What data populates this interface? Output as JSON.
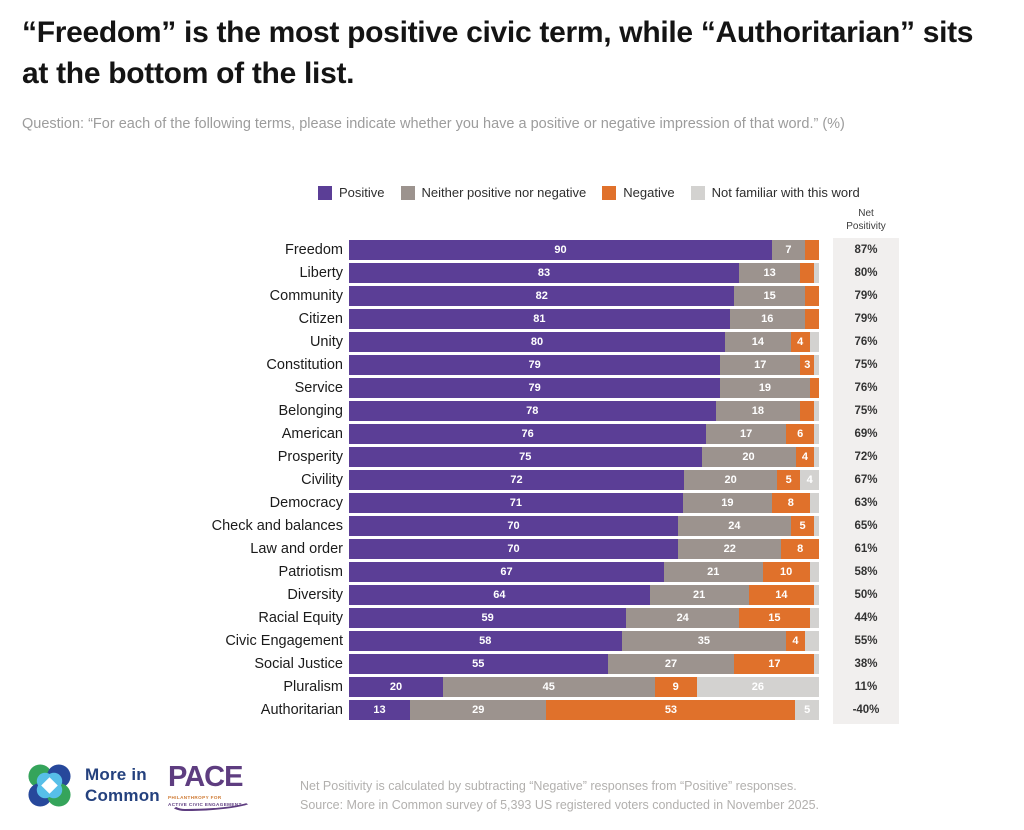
{
  "title": "“Freedom” is the most positive civic term, while “Authoritarian” sits at the bottom of the list.",
  "subtitle": "Question: “For each of the following terms, please indicate whether you have a positive or negative impression of that word.” (%)",
  "colors": {
    "positive": "#5b3e96",
    "neither": "#9c938e",
    "negative": "#e0712b",
    "not_familiar": "#d3d2d0",
    "net_column_bg": "#f1efee"
  },
  "legend": [
    {
      "label": "Positive",
      "color": "#5b3e96"
    },
    {
      "label": "Neither positive nor negative",
      "color": "#9c938e"
    },
    {
      "label": "Negative",
      "color": "#e0712b"
    },
    {
      "label": "Not familiar with this word",
      "color": "#d3d2d0"
    }
  ],
  "net_header": {
    "line1": "Net",
    "line2": "Positivity"
  },
  "chart_data": {
    "type": "bar",
    "orientation": "horizontal",
    "stacked": true,
    "x_range": [
      0,
      100
    ],
    "series_names": [
      "Positive",
      "Neither positive nor negative",
      "Negative",
      "Not familiar with this word"
    ],
    "net_column_title": "Net Positivity",
    "rows": [
      {
        "term": "Freedom",
        "values": [
          90,
          7,
          3,
          0
        ],
        "labels": [
          "90",
          "7",
          "",
          ""
        ],
        "net": "87%"
      },
      {
        "term": "Liberty",
        "values": [
          83,
          13,
          3,
          1
        ],
        "labels": [
          "83",
          "13",
          "",
          ""
        ],
        "net": "80%"
      },
      {
        "term": "Community",
        "values": [
          82,
          15,
          3,
          0
        ],
        "labels": [
          "82",
          "15",
          "",
          ""
        ],
        "net": "79%"
      },
      {
        "term": "Citizen",
        "values": [
          81,
          16,
          3,
          0
        ],
        "labels": [
          "81",
          "16",
          "",
          ""
        ],
        "net": "79%"
      },
      {
        "term": "Unity",
        "values": [
          80,
          14,
          4,
          2
        ],
        "labels": [
          "80",
          "14",
          "4",
          ""
        ],
        "net": "76%"
      },
      {
        "term": "Constitution",
        "values": [
          79,
          17,
          3,
          1
        ],
        "labels": [
          "79",
          "17",
          "3",
          ""
        ],
        "net": "75%"
      },
      {
        "term": "Service",
        "values": [
          79,
          19,
          2,
          0
        ],
        "labels": [
          "79",
          "19",
          "",
          ""
        ],
        "net": "76%"
      },
      {
        "term": "Belonging",
        "values": [
          78,
          18,
          3,
          1
        ],
        "labels": [
          "78",
          "18",
          "",
          ""
        ],
        "net": "75%"
      },
      {
        "term": "American",
        "values": [
          76,
          17,
          6,
          1
        ],
        "labels": [
          "76",
          "17",
          "6",
          ""
        ],
        "net": "69%"
      },
      {
        "term": "Prosperity",
        "values": [
          75,
          20,
          4,
          1
        ],
        "labels": [
          "75",
          "20",
          "4",
          ""
        ],
        "net": "72%"
      },
      {
        "term": "Civility",
        "values": [
          72,
          20,
          5,
          4
        ],
        "labels": [
          "72",
          "20",
          "5",
          "4"
        ],
        "net": "67%"
      },
      {
        "term": "Democracy",
        "values": [
          71,
          19,
          8,
          2
        ],
        "labels": [
          "71",
          "19",
          "8",
          ""
        ],
        "net": "63%"
      },
      {
        "term": "Check and balances",
        "values": [
          70,
          24,
          5,
          1
        ],
        "labels": [
          "70",
          "24",
          "5",
          ""
        ],
        "net": "65%"
      },
      {
        "term": "Law and order",
        "values": [
          70,
          22,
          8,
          0
        ],
        "labels": [
          "70",
          "22",
          "8",
          ""
        ],
        "net": "61%"
      },
      {
        "term": "Patriotism",
        "values": [
          67,
          21,
          10,
          2
        ],
        "labels": [
          "67",
          "21",
          "10",
          ""
        ],
        "net": "58%"
      },
      {
        "term": "Diversity",
        "values": [
          64,
          21,
          14,
          1
        ],
        "labels": [
          "64",
          "21",
          "14",
          ""
        ],
        "net": "50%"
      },
      {
        "term": "Racial Equity",
        "values": [
          59,
          24,
          15,
          2
        ],
        "labels": [
          "59",
          "24",
          "15",
          ""
        ],
        "net": "44%"
      },
      {
        "term": "Civic Engagement",
        "values": [
          58,
          35,
          4,
          3
        ],
        "labels": [
          "58",
          "35",
          "4",
          ""
        ],
        "net": "55%"
      },
      {
        "term": "Social Justice",
        "values": [
          55,
          27,
          17,
          1
        ],
        "labels": [
          "55",
          "27",
          "17",
          ""
        ],
        "net": "38%"
      },
      {
        "term": "Pluralism",
        "values": [
          20,
          45,
          9,
          26
        ],
        "labels": [
          "20",
          "45",
          "9",
          "26"
        ],
        "net": "11%"
      },
      {
        "term": "Authoritarian",
        "values": [
          13,
          29,
          53,
          5
        ],
        "labels": [
          "13",
          "29",
          "53",
          "5"
        ],
        "net": "-40%"
      }
    ]
  },
  "footnote": {
    "line1": "Net Positivity is calculated by subtracting “Negative” responses from “Positive” responses.",
    "line2": "Source: More in Common survey of 5,393 US registered voters conducted in November 2025."
  },
  "logos": {
    "mic_line1": "More in",
    "mic_line2": "Common",
    "pace_word": "PACE",
    "pace_sub1": "PHILANTHROPY FOR",
    "pace_sub2": "ACTIVE CIVIC ENGAGEMENT"
  }
}
